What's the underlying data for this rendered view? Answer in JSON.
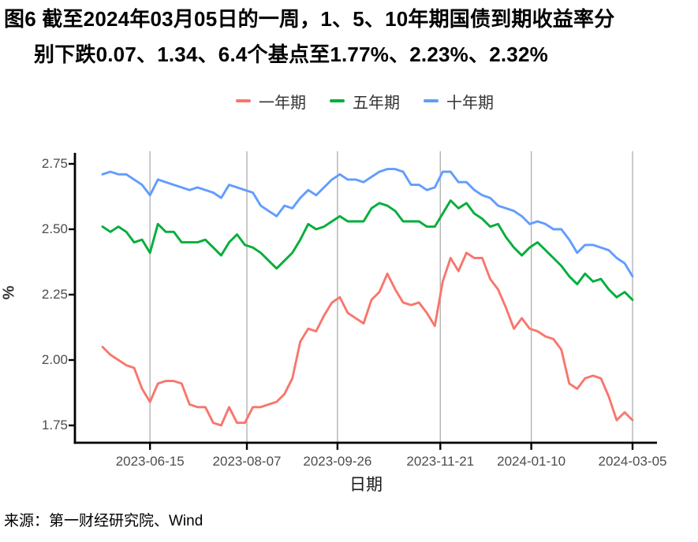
{
  "figure": {
    "title_line1": "图6  截至2024年03月05日的一周，1、5、10年期国债到期收益率分",
    "title_line2": "别下跌0.07、1.34、6.4个基点至1.77%、2.23%、2.32%",
    "source": "来源：第一财经研究院、Wind"
  },
  "colors": {
    "one_year": "#F8766D",
    "five_year": "#00AE3A",
    "ten_year": "#619CFF",
    "gridline": "#B3B3B3",
    "axis": "#000000",
    "tick_label": "#4d4d4d"
  },
  "chart_data": {
    "type": "line",
    "title": "截至2024年03月05日的一周，1、5、10年期国债到期收益率分别下跌0.07、1.34、6.4个基点至1.77%、2.23%、2.32%",
    "xlabel": "日期",
    "ylabel": "%",
    "ylim": [
      1.68,
      2.8
    ],
    "y_ticks": [
      2.75,
      2.5,
      2.25,
      2.0,
      1.75
    ],
    "x_tick_labels": [
      "2023-06-15",
      "2023-08-07",
      "2023-09-26",
      "2023-11-21",
      "2024-01-10",
      "2024-03-05"
    ],
    "x_tick_positions": [
      6,
      18.25,
      29.7,
      42.7,
      54.2,
      67
    ],
    "n_points": 68,
    "grid": {
      "vertical": true,
      "horizontal": false
    },
    "legend_position": "top",
    "series": [
      {
        "name": "一年期",
        "color": "#F8766D",
        "values": [
          2.05,
          2.02,
          2.0,
          1.98,
          1.97,
          1.89,
          1.84,
          1.91,
          1.92,
          1.92,
          1.91,
          1.83,
          1.82,
          1.82,
          1.76,
          1.75,
          1.82,
          1.76,
          1.76,
          1.82,
          1.82,
          1.83,
          1.84,
          1.87,
          1.93,
          2.07,
          2.12,
          2.11,
          2.17,
          2.22,
          2.24,
          2.18,
          2.16,
          2.14,
          2.23,
          2.26,
          2.33,
          2.27,
          2.22,
          2.21,
          2.22,
          2.18,
          2.13,
          2.3,
          2.39,
          2.34,
          2.41,
          2.39,
          2.39,
          2.31,
          2.27,
          2.2,
          2.12,
          2.16,
          2.12,
          2.11,
          2.09,
          2.08,
          2.04,
          1.91,
          1.89,
          1.93,
          1.94,
          1.93,
          1.86,
          1.77,
          1.8,
          1.77
        ]
      },
      {
        "name": "五年期",
        "color": "#00AE3A",
        "values": [
          2.51,
          2.49,
          2.51,
          2.49,
          2.45,
          2.46,
          2.41,
          2.52,
          2.49,
          2.49,
          2.45,
          2.45,
          2.45,
          2.46,
          2.43,
          2.4,
          2.45,
          2.48,
          2.44,
          2.43,
          2.41,
          2.38,
          2.35,
          2.38,
          2.41,
          2.46,
          2.52,
          2.5,
          2.51,
          2.53,
          2.55,
          2.53,
          2.53,
          2.53,
          2.58,
          2.6,
          2.59,
          2.57,
          2.53,
          2.53,
          2.53,
          2.51,
          2.51,
          2.56,
          2.61,
          2.58,
          2.6,
          2.56,
          2.54,
          2.51,
          2.52,
          2.47,
          2.43,
          2.4,
          2.43,
          2.45,
          2.42,
          2.39,
          2.36,
          2.32,
          2.29,
          2.33,
          2.3,
          2.31,
          2.27,
          2.24,
          2.26,
          2.23
        ]
      },
      {
        "name": "十年期",
        "color": "#619CFF",
        "values": [
          2.71,
          2.72,
          2.71,
          2.71,
          2.69,
          2.67,
          2.63,
          2.69,
          2.68,
          2.67,
          2.66,
          2.65,
          2.66,
          2.65,
          2.64,
          2.62,
          2.67,
          2.66,
          2.65,
          2.64,
          2.59,
          2.57,
          2.55,
          2.59,
          2.58,
          2.62,
          2.65,
          2.63,
          2.66,
          2.69,
          2.71,
          2.69,
          2.69,
          2.68,
          2.7,
          2.72,
          2.73,
          2.73,
          2.72,
          2.67,
          2.67,
          2.65,
          2.66,
          2.72,
          2.72,
          2.68,
          2.68,
          2.65,
          2.63,
          2.62,
          2.59,
          2.58,
          2.57,
          2.55,
          2.52,
          2.53,
          2.52,
          2.5,
          2.5,
          2.46,
          2.41,
          2.44,
          2.44,
          2.43,
          2.42,
          2.39,
          2.37,
          2.32
        ]
      }
    ]
  }
}
